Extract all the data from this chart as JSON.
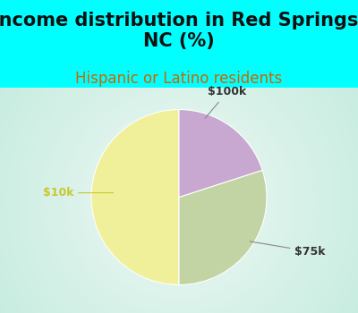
{
  "title": "Income distribution in Red Springs,\nNC (%)",
  "subtitle": "Hispanic or Latino residents",
  "title_fontsize": 15,
  "subtitle_fontsize": 12,
  "title_color": "#111111",
  "subtitle_color": "#cc6600",
  "bg_color": "#00ffff",
  "chart_bg_left": "#c8ede0",
  "chart_bg_right": "#e8f8f8",
  "slices": [
    {
      "label": "$10k",
      "value": 50,
      "color": "#f0f09a"
    },
    {
      "label": "$75k",
      "value": 30,
      "color": "#c2d4a4"
    },
    {
      "label": "$100k",
      "value": 20,
      "color": "#c8a8d0"
    }
  ],
  "startangle": 90,
  "figsize": [
    4.0,
    3.5
  ],
  "dpi": 100
}
